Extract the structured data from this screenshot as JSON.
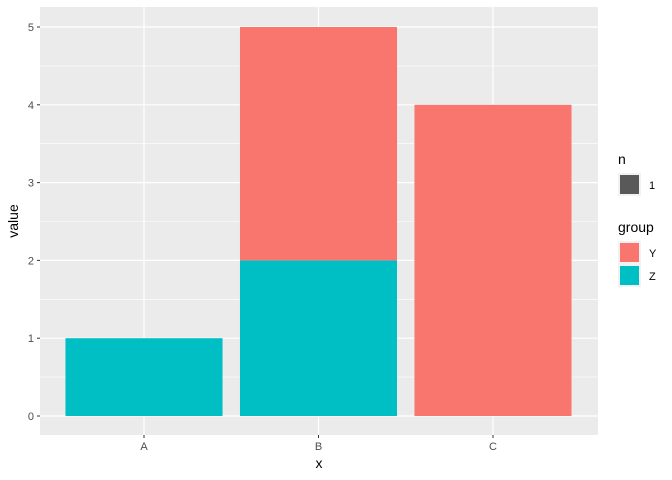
{
  "chart_data": {
    "type": "bar",
    "stacked": true,
    "categories": [
      "A",
      "B",
      "C"
    ],
    "series": [
      {
        "name": "Y",
        "color": "#F8766D",
        "values": [
          0,
          3,
          4
        ]
      },
      {
        "name": "Z",
        "color": "#00BFC4",
        "values": [
          1,
          2,
          0
        ]
      }
    ],
    "stack_order_bottom_to_top": [
      "Z",
      "Y"
    ],
    "xlabel": "x",
    "ylabel": "value",
    "ylim": [
      0,
      5
    ],
    "y_ticks": [
      0,
      1,
      2,
      3,
      4,
      5
    ],
    "grid": true,
    "panel_background": "#EBEBEB",
    "legend_placement": "right",
    "legends": [
      {
        "title": "n",
        "items": [
          {
            "label": "1",
            "color": "#595959"
          }
        ]
      },
      {
        "title": "group",
        "items": [
          {
            "label": "Y",
            "color": "#F8766D"
          },
          {
            "label": "Z",
            "color": "#00BFC4"
          }
        ]
      }
    ]
  }
}
